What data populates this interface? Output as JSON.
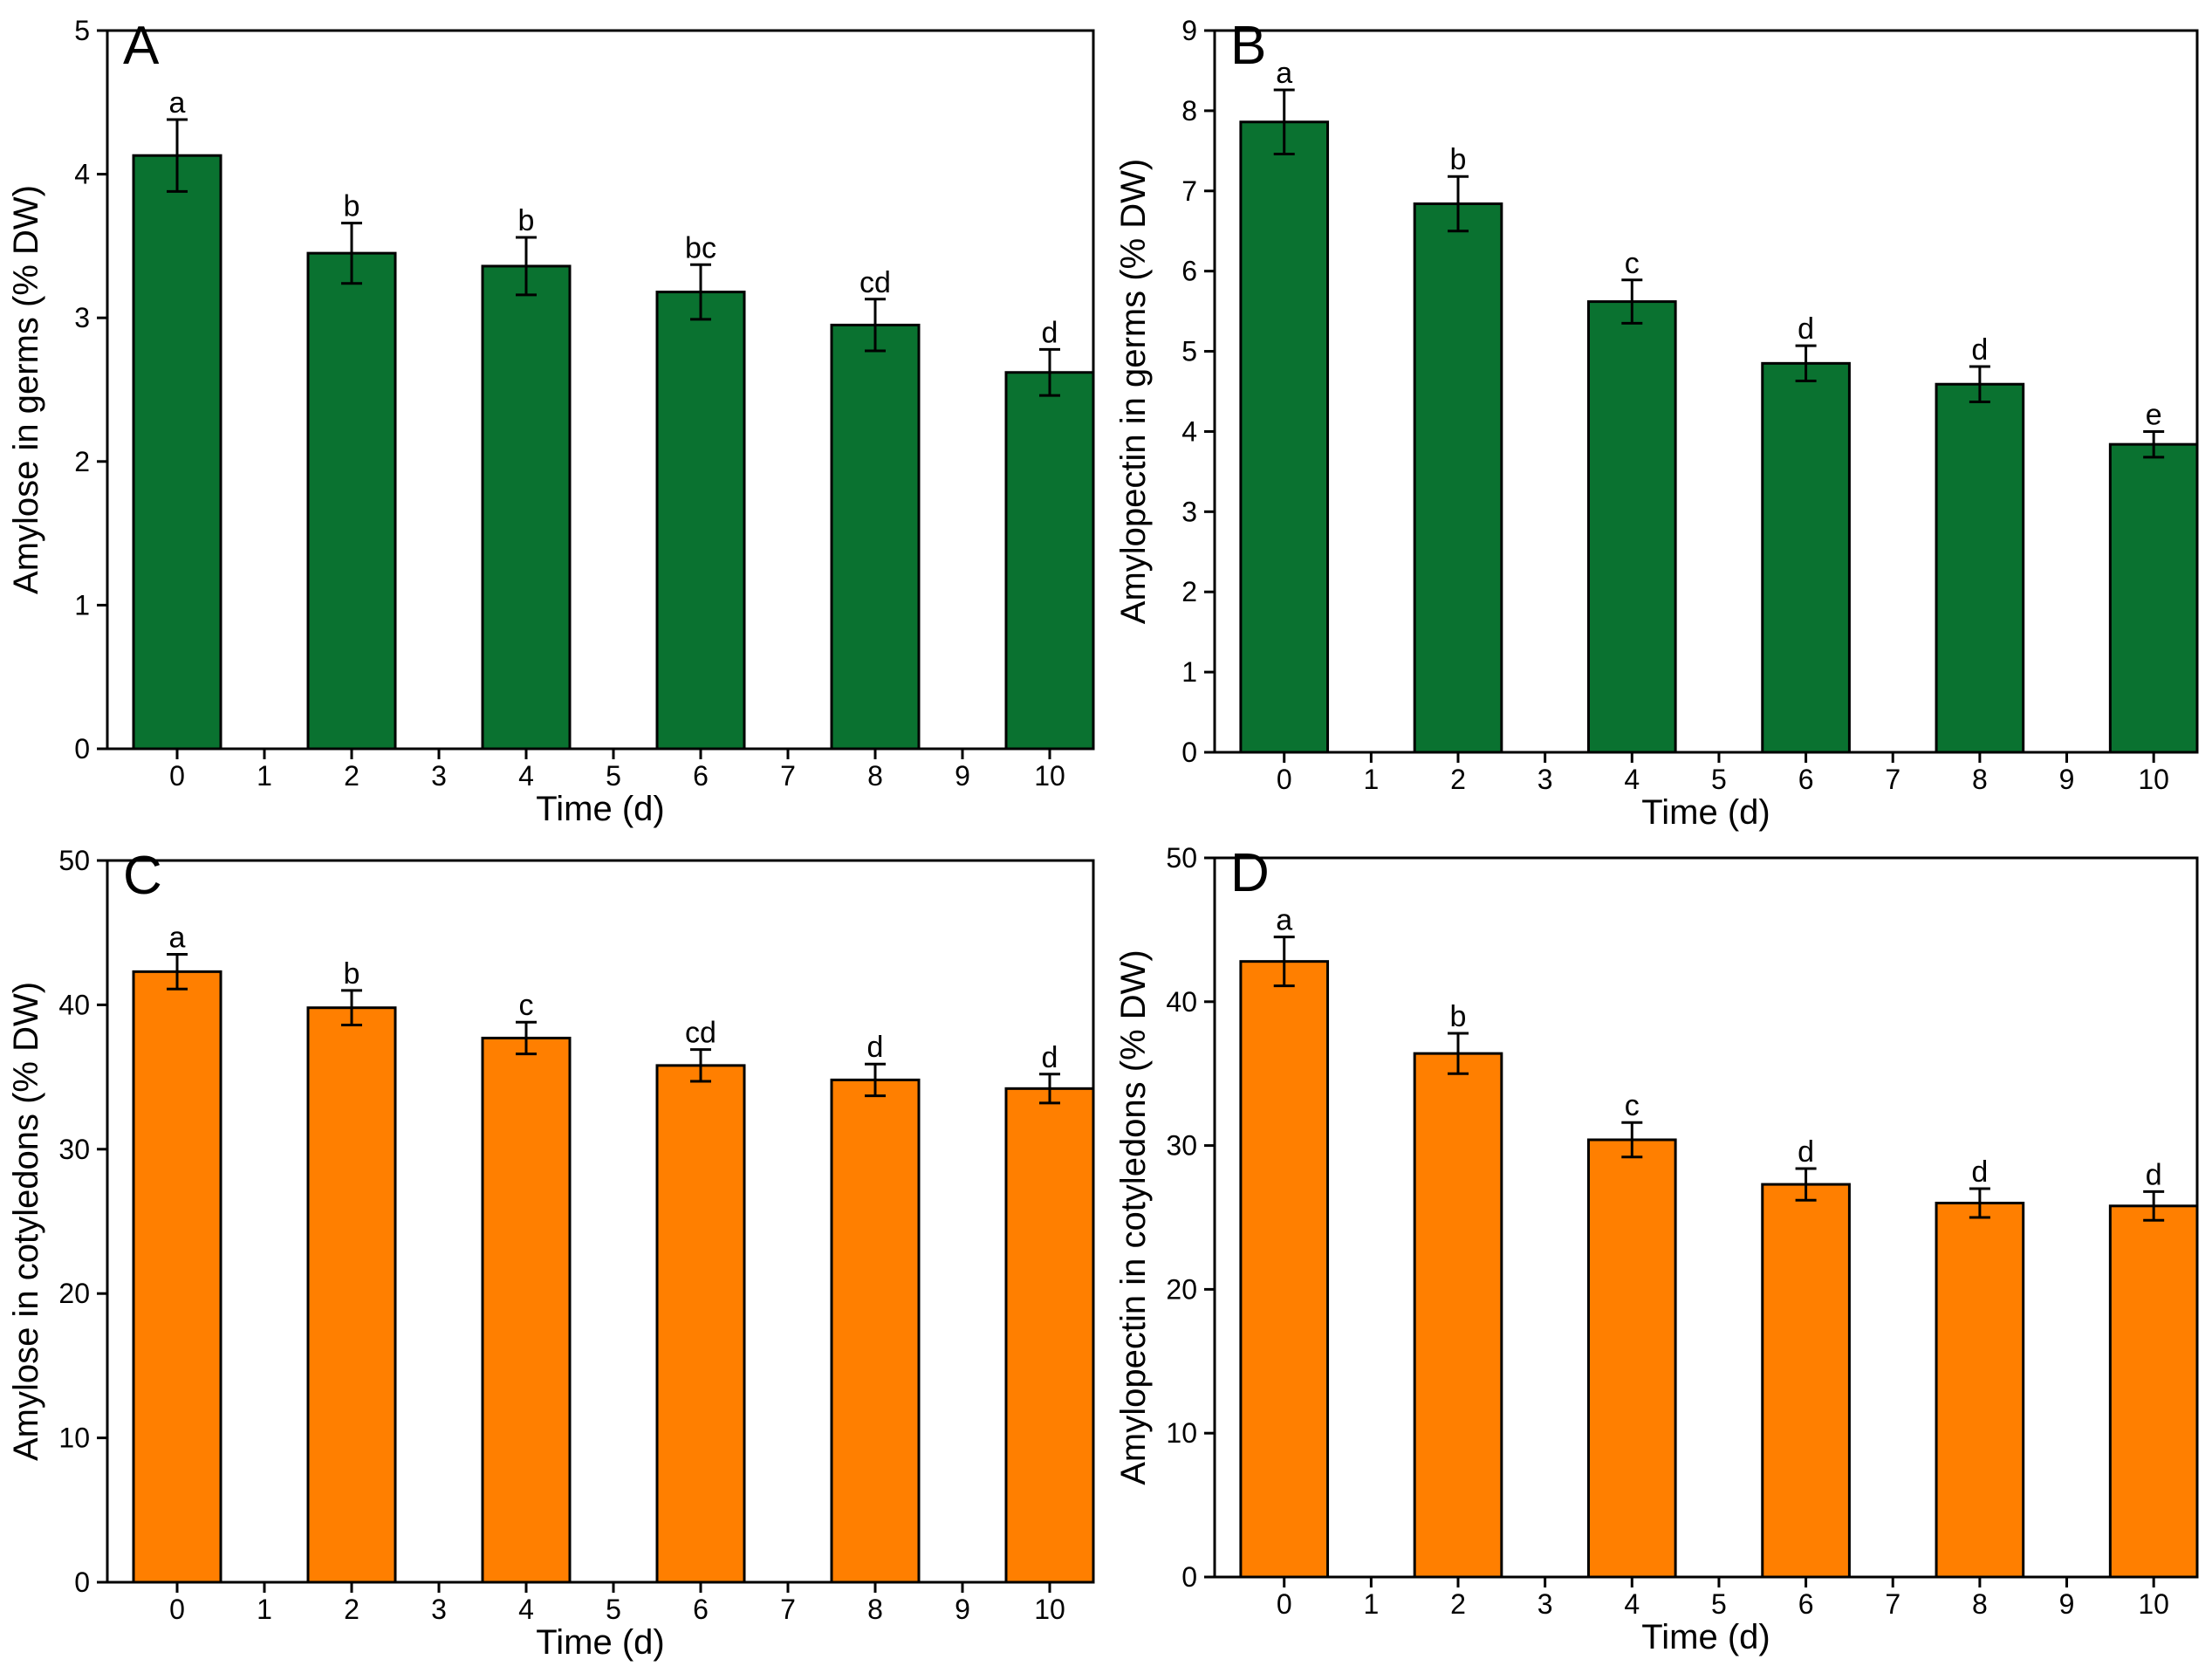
{
  "chart_data": [
    {
      "panel": "A",
      "type": "bar",
      "ylabel": "Amylose in germs (% DW)",
      "xlabel": "Time (d)",
      "x_ticks": [
        "0",
        "1",
        "2",
        "3",
        "4",
        "5",
        "6",
        "7",
        "8",
        "9",
        "10"
      ],
      "y_ticks": [
        "0",
        "1",
        "2",
        "3",
        "4",
        "5"
      ],
      "ylim": [
        0,
        5
      ],
      "bar_color": "#0a7230",
      "categories": [
        0,
        2,
        4,
        6,
        8,
        10
      ],
      "values": [
        4.13,
        3.45,
        3.36,
        3.18,
        2.95,
        2.62
      ],
      "errors": [
        0.25,
        0.21,
        0.2,
        0.19,
        0.18,
        0.16
      ],
      "letters": [
        "a",
        "b",
        "b",
        "bc",
        "cd",
        "d"
      ]
    },
    {
      "panel": "B",
      "type": "bar",
      "ylabel": "Amylopectin in germs (% DW)",
      "xlabel": "Time (d)",
      "x_ticks": [
        "0",
        "1",
        "2",
        "3",
        "4",
        "5",
        "6",
        "7",
        "8",
        "9",
        "10"
      ],
      "y_ticks": [
        "0",
        "1",
        "2",
        "3",
        "4",
        "5",
        "6",
        "7",
        "8",
        "9"
      ],
      "ylim": [
        0,
        9
      ],
      "bar_color": "#0a7230",
      "categories": [
        0,
        2,
        4,
        6,
        8,
        10
      ],
      "values": [
        7.86,
        6.84,
        5.62,
        4.85,
        4.59,
        3.84
      ],
      "errors": [
        0.4,
        0.34,
        0.27,
        0.22,
        0.22,
        0.16
      ],
      "letters": [
        "a",
        "b",
        "c",
        "d",
        "d",
        "e"
      ]
    },
    {
      "panel": "C",
      "type": "bar",
      "ylabel": "Amylose in cotyledons (% DW)",
      "xlabel": "Time (d)",
      "x_ticks": [
        "0",
        "1",
        "2",
        "3",
        "4",
        "5",
        "6",
        "7",
        "8",
        "9",
        "10"
      ],
      "y_ticks": [
        "0",
        "10",
        "20",
        "30",
        "40",
        "50"
      ],
      "ylim": [
        0,
        50
      ],
      "bar_color": "#ff7f00",
      "categories": [
        0,
        2,
        4,
        6,
        8,
        10
      ],
      "values": [
        42.3,
        39.8,
        37.7,
        35.8,
        34.8,
        34.2
      ],
      "errors": [
        1.2,
        1.2,
        1.1,
        1.1,
        1.1,
        1.0
      ],
      "letters": [
        "a",
        "b",
        "c",
        "cd",
        "d",
        "d"
      ]
    },
    {
      "panel": "D",
      "type": "bar",
      "ylabel": "Amylopectin in cotyledons (% DW)",
      "xlabel": "Time (d)",
      "x_ticks": [
        "0",
        "1",
        "2",
        "3",
        "4",
        "5",
        "6",
        "7",
        "8",
        "9",
        "10"
      ],
      "y_ticks": [
        "0",
        "10",
        "20",
        "30",
        "40",
        "50"
      ],
      "ylim": [
        0,
        50
      ],
      "bar_color": "#ff7f00",
      "categories": [
        0,
        2,
        4,
        6,
        8,
        10
      ],
      "values": [
        42.8,
        36.4,
        30.4,
        27.3,
        26.0,
        25.8
      ],
      "errors": [
        1.7,
        1.4,
        1.2,
        1.1,
        1.0,
        1.0
      ],
      "letters": [
        "a",
        "b",
        "c",
        "d",
        "d",
        "d"
      ]
    }
  ]
}
